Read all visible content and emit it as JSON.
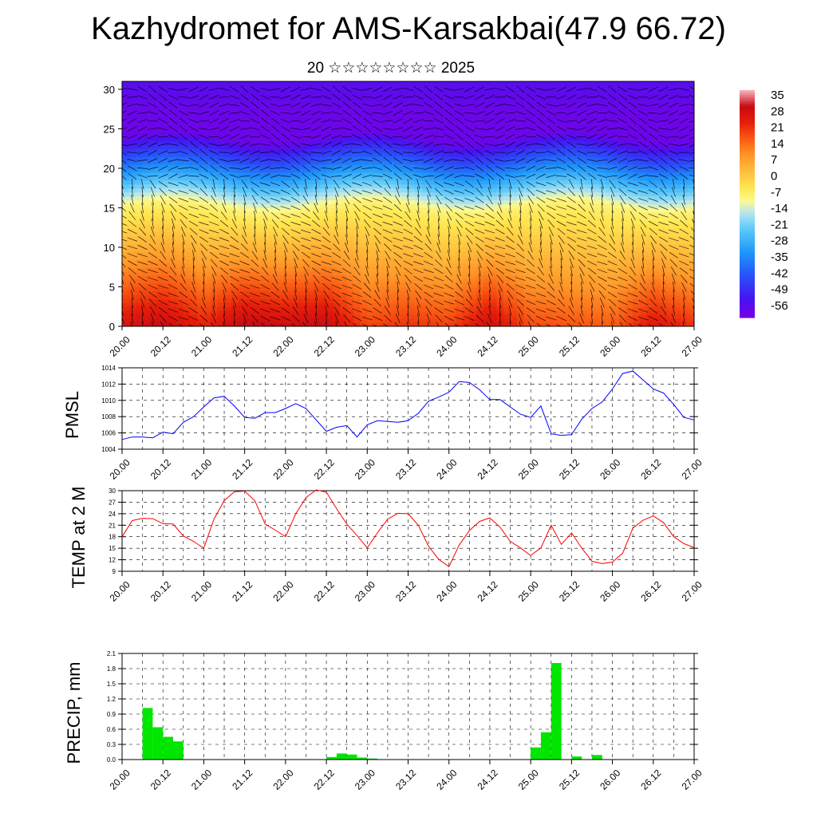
{
  "header": {
    "title": "Kazhydromet for AMS-Karsakbai(47.9 66.72)",
    "subtitle": "20 ☆☆☆☆☆☆☆☆ 2025"
  },
  "time_ticks": [
    "20.00",
    "20.12",
    "21.00",
    "21.12",
    "22.00",
    "22.12",
    "23.00",
    "23.12",
    "24.00",
    "24.12",
    "25.00",
    "25.12",
    "26.00",
    "26.12",
    "27.00"
  ],
  "chart_data": [
    {
      "type": "heatmap",
      "name": "temperature-wind-cross-section",
      "x_tick_labels": [
        "20.00",
        "20.12",
        "21.00",
        "21.12",
        "22.00",
        "22.12",
        "23.00",
        "23.12",
        "24.00",
        "24.12",
        "25.00",
        "25.12",
        "26.00",
        "26.12",
        "27.00"
      ],
      "y_ticks": [
        0,
        5,
        10,
        15,
        20,
        25,
        30
      ],
      "ylim": [
        0,
        31
      ],
      "xlim": [
        0,
        14
      ],
      "colorbar": {
        "labels": [
          "35",
          "28",
          "21",
          "14",
          "7",
          "0",
          "-7",
          "-14",
          "-21",
          "-28",
          "-35",
          "-42",
          "-49",
          "-56"
        ],
        "range": [
          -60,
          38
        ]
      },
      "surface_temp_profile": [
        [
          0,
          28
        ],
        [
          1,
          31
        ],
        [
          2,
          24
        ],
        [
          3,
          32
        ],
        [
          4,
          30
        ],
        [
          5,
          31
        ],
        [
          6,
          20
        ],
        [
          7,
          22
        ],
        [
          8,
          20
        ],
        [
          9,
          30
        ],
        [
          10,
          19
        ],
        [
          11,
          18
        ],
        [
          12,
          17
        ],
        [
          13,
          27
        ],
        [
          14,
          22
        ]
      ],
      "freezing_level_km": 15,
      "upper_min_temp": -58
    },
    {
      "type": "line",
      "name": "pmsl",
      "ylabel": "PMSL",
      "ylim": [
        1004,
        1014
      ],
      "y_ticks": [
        1004,
        1006,
        1008,
        1010,
        1012,
        1014
      ],
      "x_tick_labels": [
        "20.00",
        "20.12",
        "21.00",
        "21.12",
        "22.00",
        "22.12",
        "23.00",
        "23.12",
        "24.00",
        "24.12",
        "25.00",
        "25.12",
        "26.00",
        "26.12",
        "27.00"
      ],
      "series": [
        {
          "color": "#0000ff",
          "x": [
            0,
            0.25,
            0.5,
            0.75,
            1,
            1.25,
            1.5,
            1.75,
            2,
            2.25,
            2.5,
            2.75,
            3,
            3.25,
            3.5,
            3.75,
            4,
            4.25,
            4.5,
            4.75,
            5,
            5.25,
            5.5,
            5.75,
            6,
            6.25,
            6.5,
            6.75,
            7,
            7.25,
            7.5,
            7.75,
            8,
            8.25,
            8.5,
            8.75,
            9,
            9.25,
            9.5,
            9.75,
            10,
            10.25,
            10.5,
            10.75,
            11,
            11.25,
            11.5,
            11.75,
            12,
            12.25,
            12.5,
            12.75,
            13,
            13.25,
            13.5,
            13.75,
            14
          ],
          "values": [
            1005.2,
            1005.5,
            1005.5,
            1005.4,
            1006.1,
            1005.9,
            1007.3,
            1008.0,
            1009.2,
            1010.3,
            1010.5,
            1009.3,
            1007.9,
            1007.8,
            1008.5,
            1008.5,
            1009.0,
            1009.6,
            1009.0,
            1007.6,
            1006.2,
            1006.7,
            1006.9,
            1005.5,
            1007.0,
            1007.5,
            1007.4,
            1007.3,
            1007.5,
            1008.4,
            1009.9,
            1010.4,
            1011.0,
            1012.3,
            1012.2,
            1011.3,
            1010.1,
            1010.1,
            1009.2,
            1008.3,
            1007.9,
            1009.3,
            1005.9,
            1005.7,
            1005.8,
            1007.7,
            1009.0,
            1009.8,
            1011.4,
            1013.3,
            1013.6,
            1012.5,
            1011.4,
            1010.9,
            1009.5,
            1007.9,
            1007.6
          ]
        }
      ]
    },
    {
      "type": "line",
      "name": "temp-2m",
      "ylabel": "TEMP at 2 M",
      "ylim": [
        9,
        30
      ],
      "y_ticks": [
        9,
        12,
        15,
        18,
        21,
        24,
        27,
        30
      ],
      "x_tick_labels": [
        "20.00",
        "20.12",
        "21.00",
        "21.12",
        "22.00",
        "22.12",
        "23.00",
        "23.12",
        "24.00",
        "24.12",
        "25.00",
        "25.12",
        "26.00",
        "26.12",
        "27.00"
      ],
      "series": [
        {
          "color": "#ff0000",
          "x": [
            0,
            0.25,
            0.5,
            0.75,
            1,
            1.25,
            1.5,
            1.75,
            2,
            2.25,
            2.5,
            2.75,
            3,
            3.25,
            3.5,
            3.75,
            4,
            4.25,
            4.5,
            4.75,
            5,
            5.25,
            5.5,
            5.75,
            6,
            6.25,
            6.5,
            6.75,
            7,
            7.25,
            7.5,
            7.75,
            8,
            8.25,
            8.5,
            8.75,
            9,
            9.25,
            9.5,
            9.75,
            10,
            10.25,
            10.5,
            10.75,
            11,
            11.25,
            11.5,
            11.75,
            12,
            12.25,
            12.5,
            12.75,
            13,
            13.25,
            13.5,
            13.75,
            14
          ],
          "values": [
            18.0,
            22.2,
            22.8,
            22.7,
            21.4,
            21.3,
            18.2,
            16.8,
            15.0,
            22.6,
            27.4,
            29.7,
            29.9,
            27.4,
            21.3,
            19.7,
            18.0,
            24.0,
            28.2,
            30.2,
            29.6,
            25.3,
            21.3,
            18.3,
            15.1,
            19.0,
            22.6,
            24.1,
            24.0,
            21.0,
            15.5,
            12.1,
            10.2,
            15.8,
            19.6,
            22.0,
            22.9,
            20.5,
            16.8,
            15.1,
            13.1,
            15.1,
            21.0,
            16.0,
            19.0,
            15.0,
            11.6,
            11.0,
            11.4,
            13.7,
            20.2,
            22.3,
            23.4,
            21.7,
            18.0,
            16.2,
            15.2
          ]
        }
      ]
    },
    {
      "type": "bar",
      "name": "precip",
      "ylabel": "PRECIP, mm",
      "ylim": [
        0,
        2.1
      ],
      "y_ticks": [
        "0.0",
        "0.3",
        "0.6",
        "0.9",
        "1.2",
        "1.5",
        "1.8",
        "2.1"
      ],
      "x_tick_labels": [
        "20.00",
        "20.12",
        "21.00",
        "21.12",
        "22.00",
        "22.12",
        "23.00",
        "23.12",
        "24.00",
        "24.12",
        "25.00",
        "25.12",
        "26.00",
        "26.12",
        "27.00"
      ],
      "bar_color": "#00e600",
      "bar_width": 0.25,
      "x": [
        0.5,
        0.75,
        1.0,
        1.25,
        5.0,
        5.25,
        5.5,
        5.75,
        6.0,
        10.0,
        10.25,
        10.5,
        11.0,
        11.5
      ],
      "values": [
        1.02,
        0.64,
        0.45,
        0.36,
        0.05,
        0.12,
        0.1,
        0.04,
        0.02,
        0.24,
        0.54,
        1.91,
        0.06,
        0.09
      ]
    }
  ]
}
